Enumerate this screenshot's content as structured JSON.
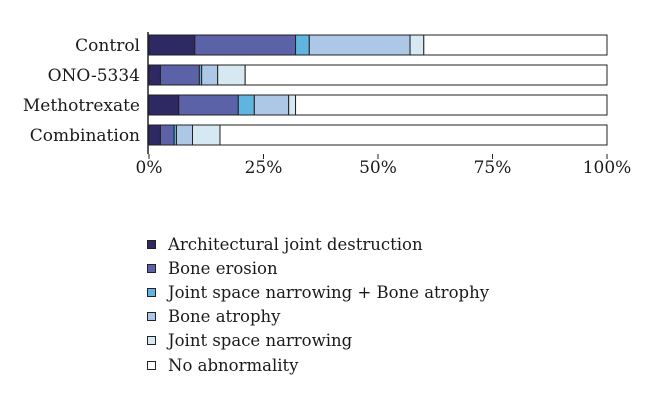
{
  "chart_data": {
    "type": "bar",
    "orientation": "horizontal",
    "stacked": true,
    "categories": [
      "Control",
      "ONO-5334",
      "Methotrexate",
      "Combination"
    ],
    "x_ticks": [
      "0%",
      "25%",
      "50%",
      "75%",
      "100%"
    ],
    "xlim": [
      0,
      100
    ],
    "grid": false,
    "legend_position": "bottom",
    "series": [
      {
        "name": "Architectural joint destruction",
        "color": "#2e2863",
        "values": [
          10,
          2.5,
          6.5,
          2.5
        ]
      },
      {
        "name": "Bone erosion",
        "color": "#5c62a8",
        "values": [
          22,
          8.5,
          13,
          3
        ]
      },
      {
        "name": "Joint space narrowing + Bone atrophy",
        "color": "#5fb4e0",
        "values": [
          3,
          0.5,
          3.5,
          0.5
        ]
      },
      {
        "name": "Bone atrophy",
        "color": "#adc7e6",
        "values": [
          22,
          3.5,
          7.5,
          3.5
        ]
      },
      {
        "name": "Joint space narrowing",
        "color": "#d6e8f2",
        "values": [
          3,
          6,
          1.5,
          6
        ]
      },
      {
        "name": "No abnormality",
        "color": "#ffffff",
        "values": [
          40,
          79,
          68,
          84.5
        ]
      }
    ]
  }
}
